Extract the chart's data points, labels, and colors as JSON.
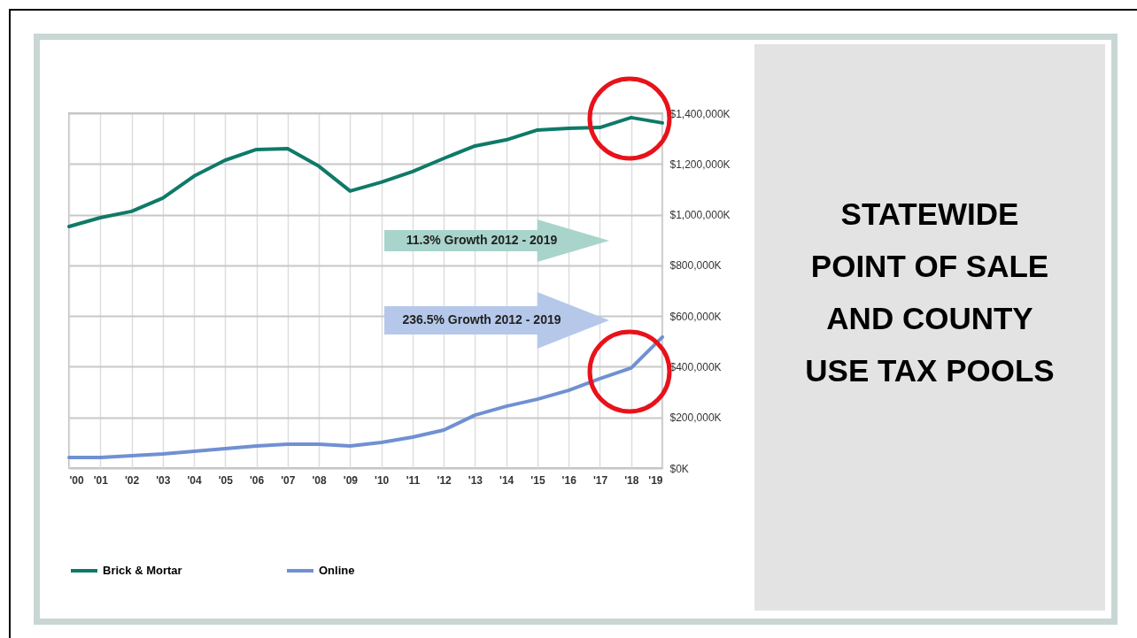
{
  "chart_data": {
    "type": "line",
    "title": "STATEWIDE POINT OF SALE AND COUNTY USE TAX POOLS",
    "categories": [
      "'00",
      "'01",
      "'02",
      "'03",
      "'04",
      "'05",
      "'06",
      "'07",
      "'08",
      "'09",
      "'10",
      "'11",
      "'12",
      "'13",
      "'14",
      "'15",
      "'16",
      "'17",
      "'18",
      "'19"
    ],
    "series": [
      {
        "name": "Brick & Mortar",
        "color": "#0e7a68",
        "values": [
          953000,
          988000,
          1013000,
          1065000,
          1152000,
          1215000,
          1257000,
          1260000,
          1191000,
          1093000,
          1128000,
          1170000,
          1222000,
          1271000,
          1295000,
          1334000,
          1341000,
          1344000,
          1383000,
          1362000
        ]
      },
      {
        "name": "Online",
        "color": "#7090d2",
        "values": [
          42000,
          42000,
          49000,
          56000,
          66000,
          77000,
          87000,
          94000,
          94000,
          87000,
          101000,
          122000,
          150000,
          209000,
          244000,
          272000,
          307000,
          353000,
          395000,
          517000
        ]
      }
    ],
    "ylim": [
      0,
      1400000
    ],
    "yticks": [
      {
        "value": 0,
        "label": "$0K"
      },
      {
        "value": 200000,
        "label": "$200,000K"
      },
      {
        "value": 400000,
        "label": "$400,000K"
      },
      {
        "value": 600000,
        "label": "$600,000K"
      },
      {
        "value": 800000,
        "label": "$800,000K"
      },
      {
        "value": 1000000,
        "label": "$1,000,000K"
      },
      {
        "value": 1200000,
        "label": "$1,200,000K"
      },
      {
        "value": 1400000,
        "label": "$1,400,000K"
      }
    ],
    "grid": true,
    "legend": "bottom",
    "marker": "none",
    "line_style": "solid",
    "annotations": [
      "11.3% Growth 2012 - 2019",
      "236.5% Growth 2012 - 2019"
    ]
  }
}
